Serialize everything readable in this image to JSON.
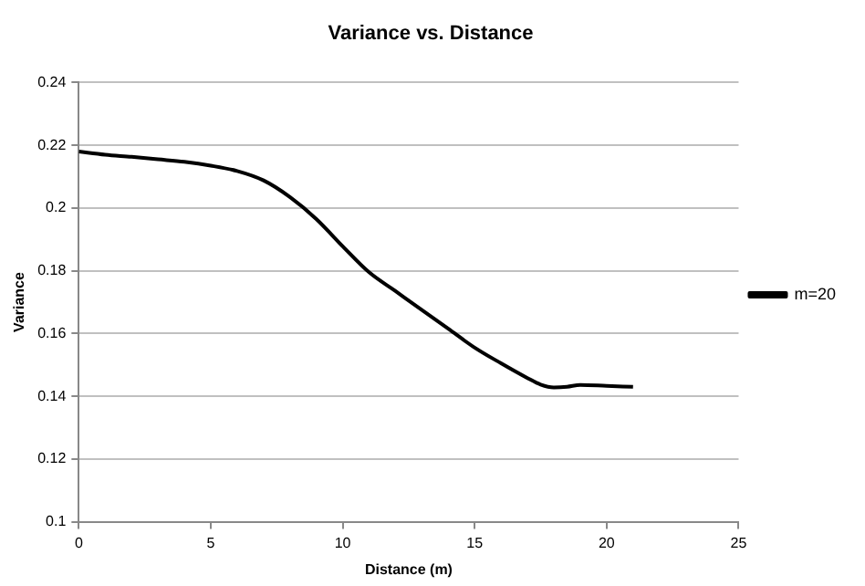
{
  "chart_data": {
    "type": "line",
    "title": "Variance vs. Distance",
    "xlabel": "Distance (m)",
    "ylabel": "Variance",
    "x": [
      0,
      1,
      2,
      3,
      4,
      5,
      6,
      7,
      8,
      9,
      10,
      11,
      12,
      13,
      14,
      15,
      16,
      17,
      17.5,
      18,
      18.5,
      19,
      20,
      21
    ],
    "series": [
      {
        "name": "m=20",
        "color": "#000000",
        "values": [
          0.218,
          0.217,
          0.2163,
          0.2155,
          0.2147,
          0.2135,
          0.2118,
          0.2088,
          0.2035,
          0.1965,
          0.1878,
          0.1795,
          0.1735,
          0.1675,
          0.1615,
          0.1555,
          0.1505,
          0.1458,
          0.1437,
          0.1428,
          0.143,
          0.1436,
          0.1433,
          0.143
        ]
      }
    ],
    "xlim": [
      0,
      25
    ],
    "xticks": [
      0,
      5,
      10,
      15,
      20,
      25
    ],
    "ylim": [
      0.1,
      0.24
    ],
    "yticks": [
      0.1,
      0.12,
      0.14,
      0.16,
      0.18,
      0.2,
      0.22,
      0.24
    ],
    "grid": "y",
    "legend": "right",
    "marker": "none",
    "line_style": "solid"
  }
}
